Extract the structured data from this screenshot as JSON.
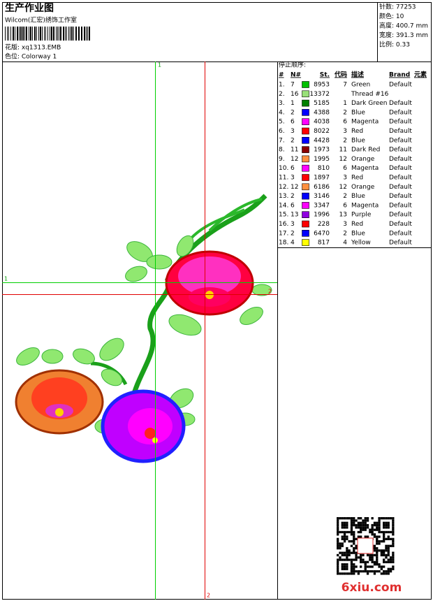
{
  "header": {
    "title": "生产作业图",
    "subtitle": "Wilcom(汇宏)绣饰工作室",
    "design": "花版: xq1313.EMB",
    "colorway": "色位: Colorway 1",
    "info": [
      "针数: 77253",
      "颜色: 10",
      "高度: 400.7 mm",
      "宽度: 391.3 mm",
      "比例: 0.33"
    ]
  },
  "guides": {
    "top": "1",
    "bottom": "2",
    "left": "1",
    "right": "2"
  },
  "table": {
    "title": "停止顺序:",
    "columns": [
      "#",
      "N#",
      "St.",
      "代码",
      "描述",
      "Brand",
      "元素"
    ],
    "rows": [
      {
        "num": "1.",
        "needle": "7",
        "stitches": "8953",
        "code": "7",
        "desc": "Green",
        "brand": "Default",
        "color": "#00c000"
      },
      {
        "num": "2.",
        "needle": "16",
        "stitches": "13372",
        "desc": "Thread #16",
        "color": "#98e078"
      },
      {
        "num": "3.",
        "needle": "1",
        "stitches": "5185",
        "code": "1",
        "desc": "Dark Green",
        "brand": "Default",
        "color": "#008000"
      },
      {
        "num": "4.",
        "needle": "2",
        "stitches": "4388",
        "code": "2",
        "desc": "Blue",
        "brand": "Default",
        "color": "#0000ff"
      },
      {
        "num": "5.",
        "needle": "6",
        "stitches": "4038",
        "code": "6",
        "desc": "Magenta",
        "brand": "Default",
        "color": "#ff00ff"
      },
      {
        "num": "6.",
        "needle": "3",
        "stitches": "8022",
        "code": "3",
        "desc": "Red",
        "brand": "Default",
        "color": "#ff0000"
      },
      {
        "num": "7.",
        "needle": "2",
        "stitches": "4428",
        "code": "2",
        "desc": "Blue",
        "brand": "Default",
        "color": "#0000ff"
      },
      {
        "num": "8.",
        "needle": "11",
        "stitches": "1973",
        "code": "11",
        "desc": "Dark Red",
        "brand": "Default",
        "color": "#8b0000"
      },
      {
        "num": "9.",
        "needle": "12",
        "stitches": "1995",
        "code": "12",
        "desc": "Orange",
        "brand": "Default",
        "color": "#ff9040"
      },
      {
        "num": "10.",
        "needle": "6",
        "stitches": "810",
        "code": "6",
        "desc": "Magenta",
        "brand": "Default",
        "color": "#ff00ff"
      },
      {
        "num": "11.",
        "needle": "3",
        "stitches": "1897",
        "code": "3",
        "desc": "Red",
        "brand": "Default",
        "color": "#ff0000"
      },
      {
        "num": "12.",
        "needle": "12",
        "stitches": "6186",
        "code": "12",
        "desc": "Orange",
        "brand": "Default",
        "color": "#ff9040"
      },
      {
        "num": "13.",
        "needle": "2",
        "stitches": "3146",
        "code": "2",
        "desc": "Blue",
        "brand": "Default",
        "color": "#0000ff"
      },
      {
        "num": "14.",
        "needle": "6",
        "stitches": "3347",
        "code": "6",
        "desc": "Magenta",
        "brand": "Default",
        "color": "#ff00ff"
      },
      {
        "num": "15.",
        "needle": "13",
        "stitches": "1996",
        "code": "13",
        "desc": "Purple",
        "brand": "Default",
        "color": "#9000e0"
      },
      {
        "num": "16.",
        "needle": "3",
        "stitches": "228",
        "code": "3",
        "desc": "Red",
        "brand": "Default",
        "color": "#ff0000"
      },
      {
        "num": "17.",
        "needle": "2",
        "stitches": "6470",
        "code": "2",
        "desc": "Blue",
        "brand": "Default",
        "color": "#0000ff"
      },
      {
        "num": "18.",
        "needle": "4",
        "stitches": "817",
        "code": "4",
        "desc": "Yellow",
        "brand": "Default",
        "color": "#ffff00"
      }
    ]
  },
  "watermark": "6xiu.com"
}
